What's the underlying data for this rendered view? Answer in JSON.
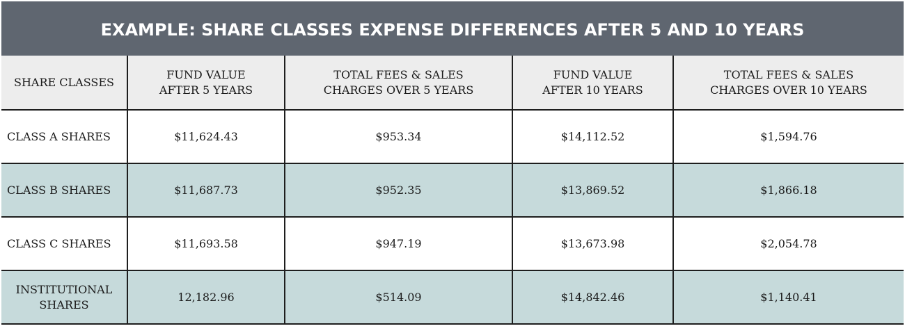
{
  "title": "EXAMPLE: SHARE CLASSES EXPENSE DIFFERENCES AFTER 5 AND 10 YEARS",
  "columns": [
    "SHARE CLASSES",
    "FUND VALUE AFTER 5 YEARS",
    "TOTAL FEES & SALES CHARGES OVER 5 YEARS",
    "FUND VALUE AFTER 10 YEARS",
    "TOTAL FEES & SALES CHARGES OVER 10 YEARS"
  ],
  "rows": [
    [
      "CLASS A SHARES",
      "$11,624.43",
      "$953.34",
      "$14,112.52",
      "$1,594.76"
    ],
    [
      "CLASS B SHARES",
      "$11,687.73",
      "$952.35",
      "$13,869.52",
      "$1,866.18"
    ],
    [
      "CLASS C SHARES",
      "$11,693.58",
      "$947.19",
      "$13,673.98",
      "$2,054.78"
    ],
    [
      "INSTITUTIONAL SHARES",
      "12,182.96",
      "$514.09",
      "$14,842.46",
      "$1,140.41"
    ]
  ]
}
